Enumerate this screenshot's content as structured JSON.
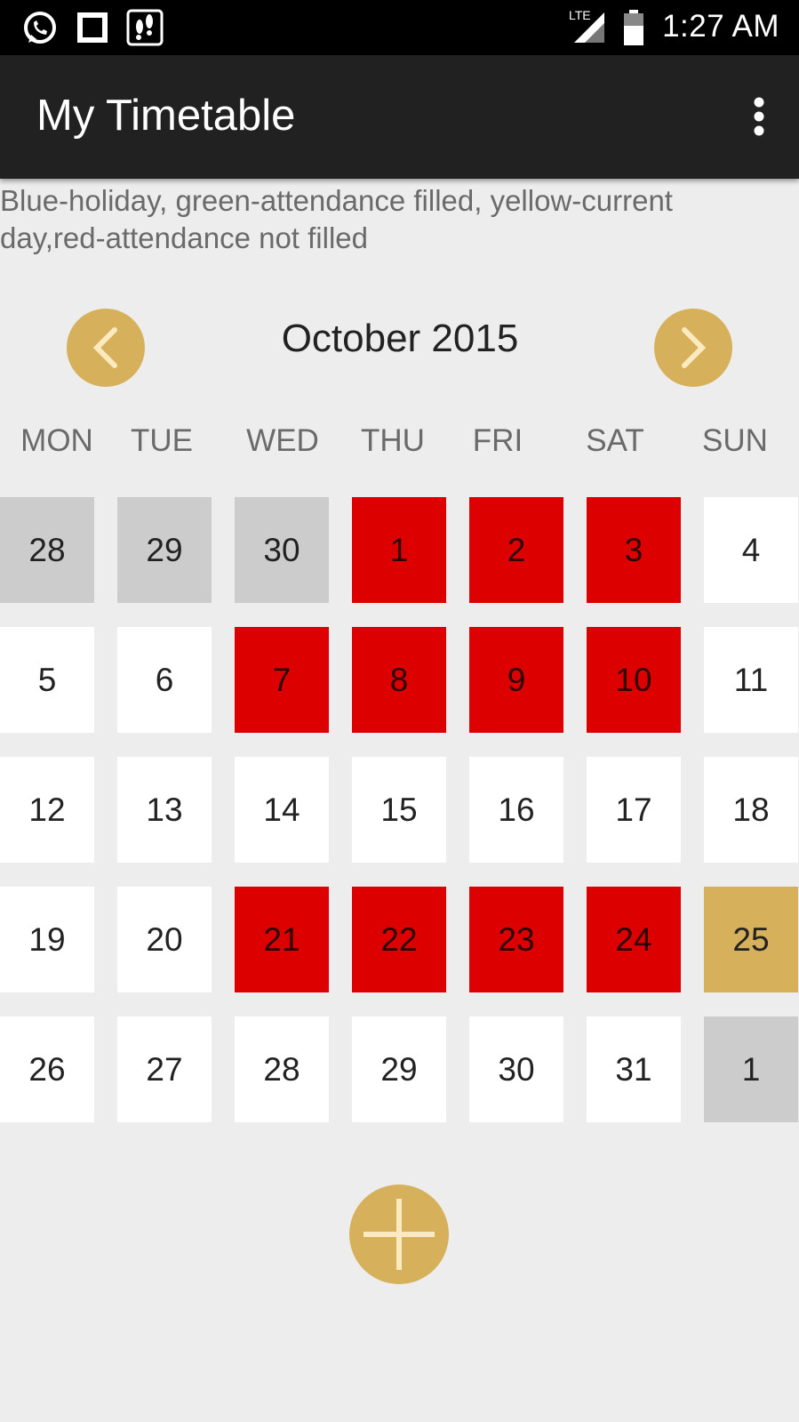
{
  "status_bar": {
    "time": "1:27 AM",
    "network": "LTE",
    "icons": [
      "whatsapp-icon",
      "square-notification-icon",
      "footprints-icon",
      "signal-icon",
      "battery-icon"
    ]
  },
  "app_bar": {
    "title": "My Timetable",
    "menu_icon": "more-vertical-icon"
  },
  "legend_text": "Blue-holiday, green-attendance filled, yellow-current day,red-attendance not filled",
  "calendar": {
    "month_label": "October 2015",
    "prev_icon": "chevron-left-icon",
    "next_icon": "chevron-right-icon",
    "weekdays": [
      "MON",
      "TUE",
      "WED",
      "THU",
      "FRI",
      "SAT",
      "SUN"
    ],
    "colors": {
      "white": "#ffffff",
      "grey": "#cccccc",
      "red": "#dd0000",
      "gold": "#d6b05a"
    },
    "weeks": [
      [
        {
          "day": "28",
          "status": "grey"
        },
        {
          "day": "29",
          "status": "grey"
        },
        {
          "day": "30",
          "status": "grey"
        },
        {
          "day": "1",
          "status": "red"
        },
        {
          "day": "2",
          "status": "red"
        },
        {
          "day": "3",
          "status": "red"
        },
        {
          "day": "4",
          "status": "white"
        }
      ],
      [
        {
          "day": "5",
          "status": "white"
        },
        {
          "day": "6",
          "status": "white"
        },
        {
          "day": "7",
          "status": "red"
        },
        {
          "day": "8",
          "status": "red"
        },
        {
          "day": "9",
          "status": "red"
        },
        {
          "day": "10",
          "status": "red"
        },
        {
          "day": "11",
          "status": "white"
        }
      ],
      [
        {
          "day": "12",
          "status": "white"
        },
        {
          "day": "13",
          "status": "white"
        },
        {
          "day": "14",
          "status": "white"
        },
        {
          "day": "15",
          "status": "white"
        },
        {
          "day": "16",
          "status": "white"
        },
        {
          "day": "17",
          "status": "white"
        },
        {
          "day": "18",
          "status": "white"
        }
      ],
      [
        {
          "day": "19",
          "status": "white"
        },
        {
          "day": "20",
          "status": "white"
        },
        {
          "day": "21",
          "status": "red"
        },
        {
          "day": "22",
          "status": "red"
        },
        {
          "day": "23",
          "status": "red"
        },
        {
          "day": "24",
          "status": "red"
        },
        {
          "day": "25",
          "status": "gold"
        }
      ],
      [
        {
          "day": "26",
          "status": "white"
        },
        {
          "day": "27",
          "status": "white"
        },
        {
          "day": "28",
          "status": "white"
        },
        {
          "day": "29",
          "status": "white"
        },
        {
          "day": "30",
          "status": "white"
        },
        {
          "day": "31",
          "status": "white"
        },
        {
          "day": "1",
          "status": "grey"
        }
      ]
    ]
  },
  "fab_icon": "plus-icon"
}
